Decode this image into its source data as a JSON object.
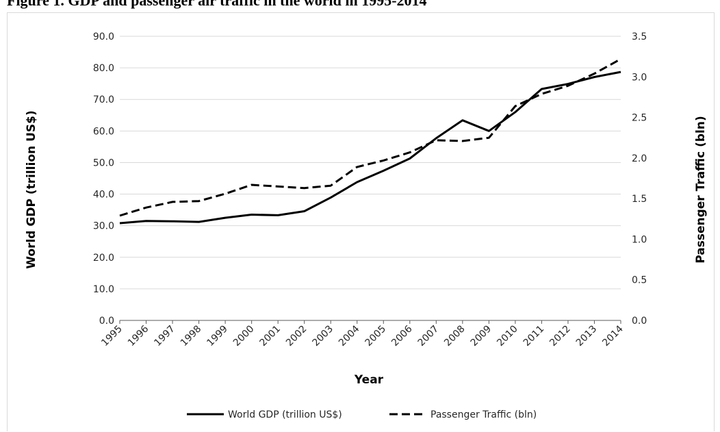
{
  "figure": {
    "label": "Figure 1.",
    "caption": "GDP and passenger air traffic in the world in 1995-2014"
  },
  "chart_data": {
    "type": "line",
    "x": [
      "1995",
      "1996",
      "1997",
      "1998",
      "1999",
      "2000",
      "2001",
      "2002",
      "2003",
      "2004",
      "2005",
      "2006",
      "2007",
      "2008",
      "2009",
      "2010",
      "2011",
      "2012",
      "2013",
      "2014"
    ],
    "xlabel": "Year",
    "ylabel": "World GDP (trillion US$)",
    "y2label": "Passenger Traffic (bln)",
    "ylim": [
      0,
      90
    ],
    "y2lim": [
      0,
      3.5
    ],
    "yticks": [
      "0.0",
      "10.0",
      "20.0",
      "30.0",
      "40.0",
      "50.0",
      "60.0",
      "70.0",
      "80.0",
      "90.0"
    ],
    "y2ticks": [
      "0.0",
      "0.5",
      "1.0",
      "1.5",
      "2.0",
      "2.5",
      "3.0",
      "3.5"
    ],
    "grid": true,
    "legend": "bottom",
    "series": [
      {
        "name": "World GDP (trillion US$)",
        "axis": "left",
        "style": "solid",
        "color": "#000000",
        "values": [
          30.8,
          31.5,
          31.4,
          31.2,
          32.5,
          33.5,
          33.3,
          34.6,
          38.9,
          43.8,
          47.4,
          51.3,
          57.7,
          63.4,
          60.0,
          66.0,
          73.3,
          74.9,
          77.1,
          78.7
        ]
      },
      {
        "name": "Passenger Traffic (bln)",
        "axis": "right",
        "style": "dashed",
        "color": "#000000",
        "values": [
          1.29,
          1.39,
          1.46,
          1.47,
          1.56,
          1.67,
          1.65,
          1.63,
          1.66,
          1.89,
          1.97,
          2.07,
          2.22,
          2.21,
          2.25,
          2.64,
          2.79,
          2.89,
          3.04,
          3.22
        ]
      }
    ]
  }
}
